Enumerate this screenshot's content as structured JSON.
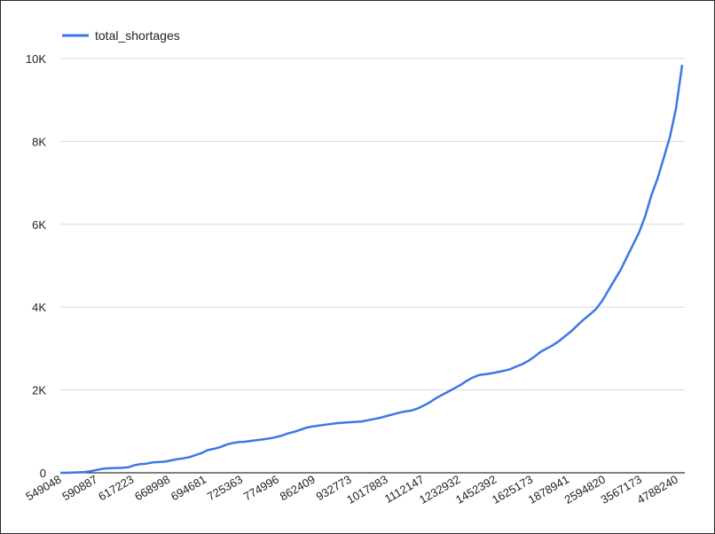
{
  "chart_data": {
    "type": "line",
    "title": "",
    "xlabel": "",
    "ylabel": "",
    "legend": {
      "position": "top-left"
    },
    "grid": true,
    "ylim": [
      0,
      10000
    ],
    "y_ticks": [
      0,
      2000,
      4000,
      6000,
      8000,
      10000
    ],
    "y_tick_labels": [
      "0",
      "2K",
      "4K",
      "6K",
      "8K",
      "10K"
    ],
    "x_tick_labels": [
      "549048",
      "590887",
      "617223",
      "668998",
      "694681",
      "725363",
      "774996",
      "862409",
      "932773",
      "1017883",
      "1112147",
      "1232932",
      "1452392",
      "1625173",
      "1878941",
      "2594820",
      "3567173",
      "4788240"
    ],
    "series": [
      {
        "name": "total_shortages",
        "color": "#3b78e7",
        "values": [
          0,
          0,
          5,
          10,
          20,
          40,
          70,
          100,
          110,
          115,
          120,
          130,
          180,
          210,
          220,
          250,
          260,
          270,
          300,
          330,
          350,
          380,
          430,
          480,
          550,
          580,
          620,
          680,
          720,
          740,
          750,
          770,
          790,
          810,
          830,
          860,
          900,
          950,
          990,
          1040,
          1090,
          1120,
          1140,
          1160,
          1180,
          1200,
          1210,
          1220,
          1230,
          1240,
          1270,
          1300,
          1330,
          1370,
          1410,
          1450,
          1480,
          1500,
          1550,
          1620,
          1700,
          1800,
          1880,
          1960,
          2040,
          2120,
          2220,
          2300,
          2360,
          2380,
          2400,
          2430,
          2460,
          2500,
          2560,
          2620,
          2700,
          2800,
          2920,
          3000,
          3080,
          3180,
          3300,
          3420,
          3560,
          3700,
          3820,
          3950,
          4150,
          4400,
          4650,
          4900,
          5200,
          5500,
          5800,
          6200,
          6700,
          7100,
          7600,
          8100,
          8800,
          9850
        ]
      }
    ]
  }
}
